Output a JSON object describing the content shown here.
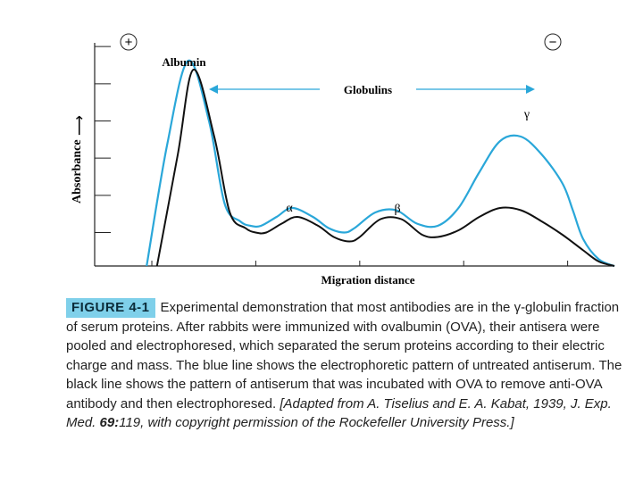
{
  "chart_data": {
    "type": "line",
    "xlabel": "Migration distance",
    "ylabel": "Absorbance",
    "y_arrow": "⟶",
    "pole_left": "+",
    "pole_right": "−",
    "grid": false,
    "x_tick_count": 5,
    "y_tick_count": 6,
    "annotations": {
      "albumin": "Albumin",
      "globulins": "Globulins",
      "alpha": "α",
      "beta": "β",
      "gamma": "γ"
    },
    "series": [
      {
        "key": "blue",
        "color": "#2aa7d9",
        "x": [
          0.1,
          0.14,
          0.18,
          0.22,
          0.25,
          0.28,
          0.3,
          0.32,
          0.35,
          0.38,
          0.42,
          0.45,
          0.48,
          0.5,
          0.54,
          0.58,
          0.62,
          0.66,
          0.7,
          0.74,
          0.78,
          0.82,
          0.86,
          0.9,
          0.92,
          0.94,
          0.97,
          1.0
        ],
        "values": [
          0.0,
          0.55,
          0.92,
          0.65,
          0.28,
          0.2,
          0.18,
          0.18,
          0.22,
          0.26,
          0.22,
          0.17,
          0.15,
          0.17,
          0.24,
          0.25,
          0.19,
          0.18,
          0.26,
          0.42,
          0.56,
          0.58,
          0.5,
          0.37,
          0.25,
          0.12,
          0.03,
          0.0
        ]
      },
      {
        "key": "black",
        "color": "#111111",
        "x": [
          0.12,
          0.16,
          0.19,
          0.23,
          0.26,
          0.29,
          0.31,
          0.33,
          0.36,
          0.39,
          0.43,
          0.46,
          0.49,
          0.51,
          0.55,
          0.59,
          0.63,
          0.66,
          0.7,
          0.74,
          0.78,
          0.82,
          0.86,
          0.9,
          0.94,
          0.97,
          1.0
        ],
        "values": [
          0.0,
          0.5,
          0.88,
          0.58,
          0.24,
          0.17,
          0.15,
          0.15,
          0.19,
          0.22,
          0.18,
          0.13,
          0.11,
          0.13,
          0.21,
          0.21,
          0.14,
          0.13,
          0.16,
          0.22,
          0.26,
          0.25,
          0.2,
          0.14,
          0.07,
          0.02,
          0.0
        ]
      }
    ]
  },
  "caption": {
    "label": "FIGURE 4-1",
    "text": "Experimental demonstration that most antibodies are in the γ-globulin fraction of serum proteins. After rabbits were immunized with ovalbumin (OVA), their antisera were pooled and electrophoresed, which separated the serum proteins according to their electric charge and mass. The blue line shows the electrophoretic pattern of untreated antiserum. The black line shows the pattern of antiserum that was incubated with OVA to remove anti-OVA antibody and then electrophoresed.",
    "source_1": "[Adapted from A. Tiselius and E. A. Kabat, 1939, J. Exp. Med.",
    "source_vol": "69:",
    "source_2": "119, with copyright permission of the Rockefeller University Press.]"
  }
}
